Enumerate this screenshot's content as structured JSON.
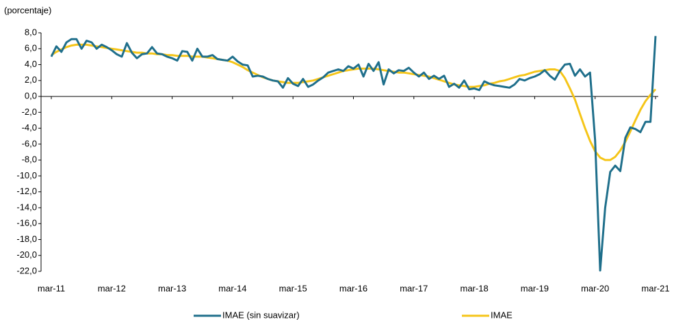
{
  "chart_data": {
    "type": "line",
    "y_label": "(porcentaje)",
    "categories": [
      "mar-11",
      null,
      null,
      null,
      null,
      null,
      null,
      null,
      null,
      null,
      null,
      null,
      "mar-12",
      null,
      null,
      null,
      null,
      null,
      null,
      null,
      null,
      null,
      null,
      null,
      "mar-13",
      null,
      null,
      null,
      null,
      null,
      null,
      null,
      null,
      null,
      null,
      null,
      "mar-14",
      null,
      null,
      null,
      null,
      null,
      null,
      null,
      null,
      null,
      null,
      null,
      "mar-15",
      null,
      null,
      null,
      null,
      null,
      null,
      null,
      null,
      null,
      null,
      null,
      "mar-16",
      null,
      null,
      null,
      null,
      null,
      null,
      null,
      null,
      null,
      null,
      null,
      "mar-17",
      null,
      null,
      null,
      null,
      null,
      null,
      null,
      null,
      null,
      null,
      null,
      "mar-18",
      null,
      null,
      null,
      null,
      null,
      null,
      null,
      null,
      null,
      null,
      null,
      "mar-19",
      null,
      null,
      null,
      null,
      null,
      null,
      null,
      null,
      null,
      null,
      null,
      "mar-20",
      null,
      null,
      null,
      null,
      null,
      null,
      null,
      null,
      null,
      null,
      null,
      "mar-21"
    ],
    "series": [
      {
        "name": "IMAE (sin suavizar)",
        "color": "#1f6f8b",
        "values": [
          5.0,
          6.3,
          5.6,
          6.8,
          7.2,
          7.2,
          6.0,
          7.0,
          6.8,
          6.0,
          6.5,
          6.2,
          5.8,
          5.3,
          5.0,
          6.7,
          5.5,
          4.8,
          5.3,
          5.4,
          6.2,
          5.4,
          5.3,
          5.0,
          4.8,
          4.5,
          5.7,
          5.6,
          4.5,
          6.0,
          5.0,
          5.0,
          5.2,
          4.7,
          4.6,
          4.5,
          5.0,
          4.4,
          4.0,
          3.9,
          2.5,
          2.6,
          2.5,
          2.2,
          2.0,
          1.9,
          1.1,
          2.3,
          1.6,
          1.3,
          2.2,
          1.2,
          1.5,
          2.0,
          2.4,
          3.0,
          3.2,
          3.4,
          3.2,
          3.8,
          3.5,
          4.0,
          2.5,
          4.1,
          3.2,
          4.3,
          1.5,
          3.4,
          2.9,
          3.3,
          3.2,
          3.6,
          3.0,
          2.5,
          3.0,
          2.2,
          2.6,
          2.2,
          2.6,
          1.2,
          1.6,
          1.1,
          2.0,
          0.9,
          1.0,
          0.8,
          1.9,
          1.6,
          1.4,
          1.3,
          1.2,
          1.1,
          1.5,
          2.2,
          2.0,
          2.3,
          2.5,
          2.8,
          3.3,
          2.6,
          2.1,
          3.2,
          4.0,
          4.1,
          2.6,
          3.4,
          2.5,
          3.0,
          -5.5,
          -21.9,
          -14.0,
          -9.5,
          -8.7,
          -9.4,
          -5.2,
          -3.9,
          -4.1,
          -4.5,
          -3.2,
          -3.2,
          7.6
        ]
      },
      {
        "name": "IMAE",
        "color": "#f5c518",
        "values": [
          5.2,
          5.6,
          5.9,
          6.2,
          6.4,
          6.5,
          6.5,
          6.5,
          6.4,
          6.3,
          6.2,
          6.1,
          6.0,
          5.9,
          5.8,
          5.7,
          5.6,
          5.5,
          5.5,
          5.4,
          5.4,
          5.3,
          5.3,
          5.2,
          5.2,
          5.1,
          5.1,
          5.1,
          5.0,
          5.0,
          5.0,
          4.9,
          4.8,
          4.7,
          4.6,
          4.5,
          4.3,
          4.0,
          3.7,
          3.3,
          3.0,
          2.7,
          2.4,
          2.2,
          2.0,
          1.9,
          1.8,
          1.7,
          1.7,
          1.7,
          1.8,
          1.9,
          2.0,
          2.2,
          2.4,
          2.6,
          2.8,
          3.0,
          3.2,
          3.3,
          3.4,
          3.5,
          3.5,
          3.5,
          3.5,
          3.4,
          3.3,
          3.2,
          3.1,
          3.0,
          3.0,
          2.9,
          2.8,
          2.7,
          2.6,
          2.5,
          2.3,
          2.1,
          1.9,
          1.7,
          1.5,
          1.4,
          1.3,
          1.2,
          1.2,
          1.3,
          1.4,
          1.6,
          1.7,
          1.9,
          2.0,
          2.2,
          2.4,
          2.6,
          2.7,
          2.9,
          3.1,
          3.2,
          3.3,
          3.4,
          3.4,
          3.2,
          2.3,
          1.0,
          -0.4,
          -2.2,
          -4.0,
          -5.6,
          -6.9,
          -7.7,
          -8.0,
          -8.0,
          -7.6,
          -6.8,
          -5.7,
          -4.4,
          -3.0,
          -1.7,
          -0.6,
          0.2,
          0.9
        ]
      }
    ],
    "ylim": [
      -22,
      8
    ],
    "yticks": [
      {
        "value": 8,
        "label": "8,0"
      },
      {
        "value": 6,
        "label": "6,0"
      },
      {
        "value": 4,
        "label": "4,0"
      },
      {
        "value": 2,
        "label": "2,0"
      },
      {
        "value": 0,
        "label": "0,0"
      },
      {
        "value": -2,
        "label": "-2,0"
      },
      {
        "value": -4,
        "label": "-4,0"
      },
      {
        "value": -6,
        "label": "-6,0"
      },
      {
        "value": -8,
        "label": "-8,0"
      },
      {
        "value": -10,
        "label": "-10,0"
      },
      {
        "value": -12,
        "label": "-12,0"
      },
      {
        "value": -14,
        "label": "-14,0"
      },
      {
        "value": -16,
        "label": "-16,0"
      },
      {
        "value": -18,
        "label": "-18,0"
      },
      {
        "value": -20,
        "label": "-20,0"
      },
      {
        "value": -22,
        "label": "-22,0"
      }
    ],
    "legend": "bottom"
  }
}
